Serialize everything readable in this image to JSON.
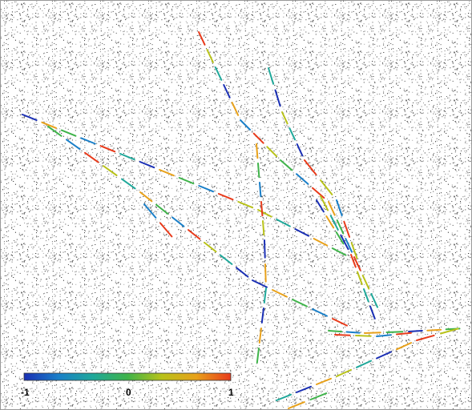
{
  "colorbar": {
    "ticks": [
      "-1",
      "0",
      "1"
    ],
    "colors": [
      "#1a2fb4",
      "#1a7fc8",
      "#1fa89a",
      "#3fb34a",
      "#b8c21a",
      "#e8a11a",
      "#e83a1a"
    ]
  },
  "background": {
    "color": "#ffffff",
    "speckle_color": "#000000"
  }
}
